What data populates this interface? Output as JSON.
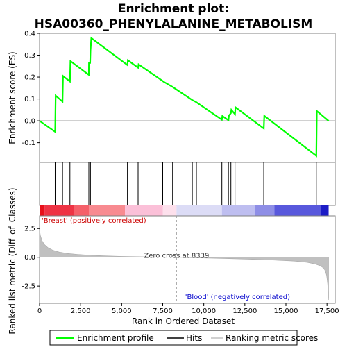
{
  "chart_data": {
    "type": "line",
    "title_line1": "Enrichment plot:",
    "title_line2": "HSA00360_PHENYLALANINE_METABOLISM",
    "xlabel": "Rank in Ordered Dataset",
    "es_ylabel": "Enrichment score (ES)",
    "metric_ylabel": "Ranked list metric (Diff_of_Classes)",
    "xlim": [
      0,
      18000
    ],
    "es_ylim": [
      -0.19,
      0.4
    ],
    "metric_ylim": [
      -4.0,
      3.6
    ],
    "x_ticks": [
      0,
      2500,
      5000,
      7500,
      10000,
      12500,
      15000,
      17500
    ],
    "x_tick_labels": [
      "0",
      "2,500",
      "5,000",
      "7,500",
      "10,000",
      "12,500",
      "15,000",
      "17,500"
    ],
    "es_ticks": [
      -0.1,
      0.0,
      0.1,
      0.2,
      0.3,
      0.4
    ],
    "es_tick_labels": [
      "-0.1",
      "0.0",
      "0.1",
      "0.2",
      "0.3",
      "0.4"
    ],
    "metric_ticks": [
      -2.5,
      0.0,
      2.5
    ],
    "metric_tick_labels": [
      "-2.5",
      "0.0",
      "2.5"
    ],
    "series": [
      {
        "name": "Enrichment profile",
        "color": "#00ff00",
        "x": [
          0,
          950,
          980,
          1400,
          1430,
          1850,
          1880,
          3000,
          3010,
          3080,
          3100,
          3150,
          5350,
          5380,
          6000,
          6030,
          7500,
          7530,
          8100,
          9300,
          9550,
          11100,
          11130,
          11500,
          11530,
          11650,
          11680,
          11900,
          11930,
          13650,
          13680,
          16850,
          16880,
          17600
        ],
        "y": [
          0.0,
          -0.05,
          0.115,
          0.088,
          0.205,
          0.18,
          0.273,
          0.21,
          0.265,
          0.265,
          0.322,
          0.378,
          0.255,
          0.277,
          0.243,
          0.258,
          0.182,
          0.18,
          0.155,
          0.095,
          0.085,
          0.005,
          0.022,
          0.003,
          0.024,
          0.035,
          0.05,
          0.03,
          0.062,
          -0.035,
          0.023,
          -0.16,
          0.045,
          0.0
        ]
      }
    ],
    "hits": [
      950,
      1400,
      1850,
      3000,
      3080,
      3100,
      5350,
      6000,
      7500,
      8100,
      9300,
      9550,
      11100,
      11500,
      11650,
      11900,
      13650,
      16850
    ],
    "ranking_metric": {
      "name": "Ranking metric scores",
      "color": "#c0c0c0",
      "x": [
        0,
        50,
        150,
        300,
        500,
        800,
        1200,
        1700,
        2300,
        3000,
        4000,
        5000,
        6500,
        8339,
        9500,
        11000,
        12500,
        14000,
        15500,
        16300,
        16800,
        17100,
        17300,
        17400,
        17480,
        17540,
        17580,
        17600
      ],
      "y": [
        2.4,
        1.9,
        1.45,
        1.1,
        0.85,
        0.62,
        0.45,
        0.33,
        0.25,
        0.18,
        0.12,
        0.08,
        0.04,
        0.0,
        -0.05,
        -0.1,
        -0.16,
        -0.23,
        -0.33,
        -0.45,
        -0.6,
        -0.75,
        -0.95,
        -1.2,
        -1.6,
        -2.3,
        -3.3,
        -3.7
      ]
    },
    "zero_cross": 8339,
    "zero_cross_label": "Zero cross at 8339",
    "pos_label": "'Breast' (positively correlated)",
    "neg_label": "'Blood' (negatively correlated)",
    "pos_label_color": "#cc0000",
    "neg_label_color": "#0000cc",
    "legend": [
      "Enrichment profile",
      "Hits",
      "Ranking metric scores"
    ],
    "legend_colors": [
      "#00ff00",
      "#000000",
      "#c0c0c0"
    ],
    "heatbar_segments": [
      {
        "from": 0,
        "to": 300,
        "color": "#e8101a"
      },
      {
        "from": 300,
        "to": 2100,
        "color": "#ee3344"
      },
      {
        "from": 2100,
        "to": 3000,
        "color": "#f5606a"
      },
      {
        "from": 3000,
        "to": 5200,
        "color": "#f88a90"
      },
      {
        "from": 5200,
        "to": 7500,
        "color": "#fbc0d8"
      },
      {
        "from": 7500,
        "to": 8339,
        "color": "#fde0ec"
      },
      {
        "from": 8339,
        "to": 11100,
        "color": "#dcdcf6"
      },
      {
        "from": 11100,
        "to": 13100,
        "color": "#bebef0"
      },
      {
        "from": 13100,
        "to": 14300,
        "color": "#8e8ee6"
      },
      {
        "from": 14300,
        "to": 17100,
        "color": "#5858dc"
      },
      {
        "from": 17100,
        "to": 17600,
        "color": "#1c1cc6"
      }
    ]
  }
}
